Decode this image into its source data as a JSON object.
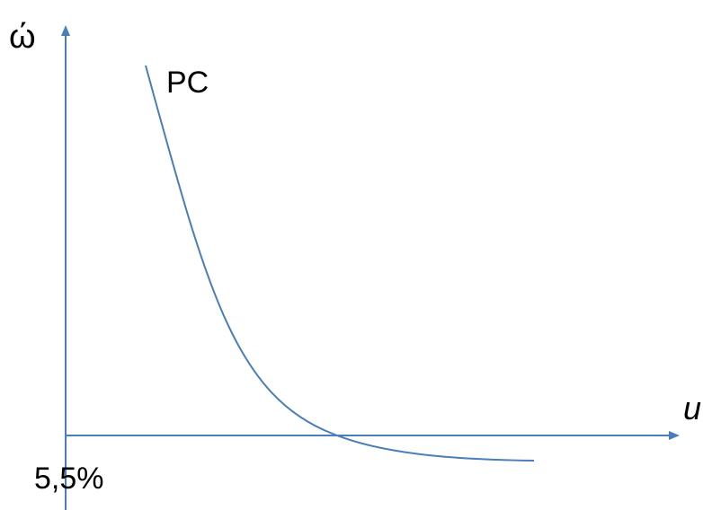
{
  "axes": {
    "y_label": "ώ",
    "x_label": "u",
    "origin_label": "5,5%"
  },
  "curve": {
    "label": "PC"
  },
  "colors": {
    "line": "#4a7ebb",
    "text": "#000000"
  }
}
